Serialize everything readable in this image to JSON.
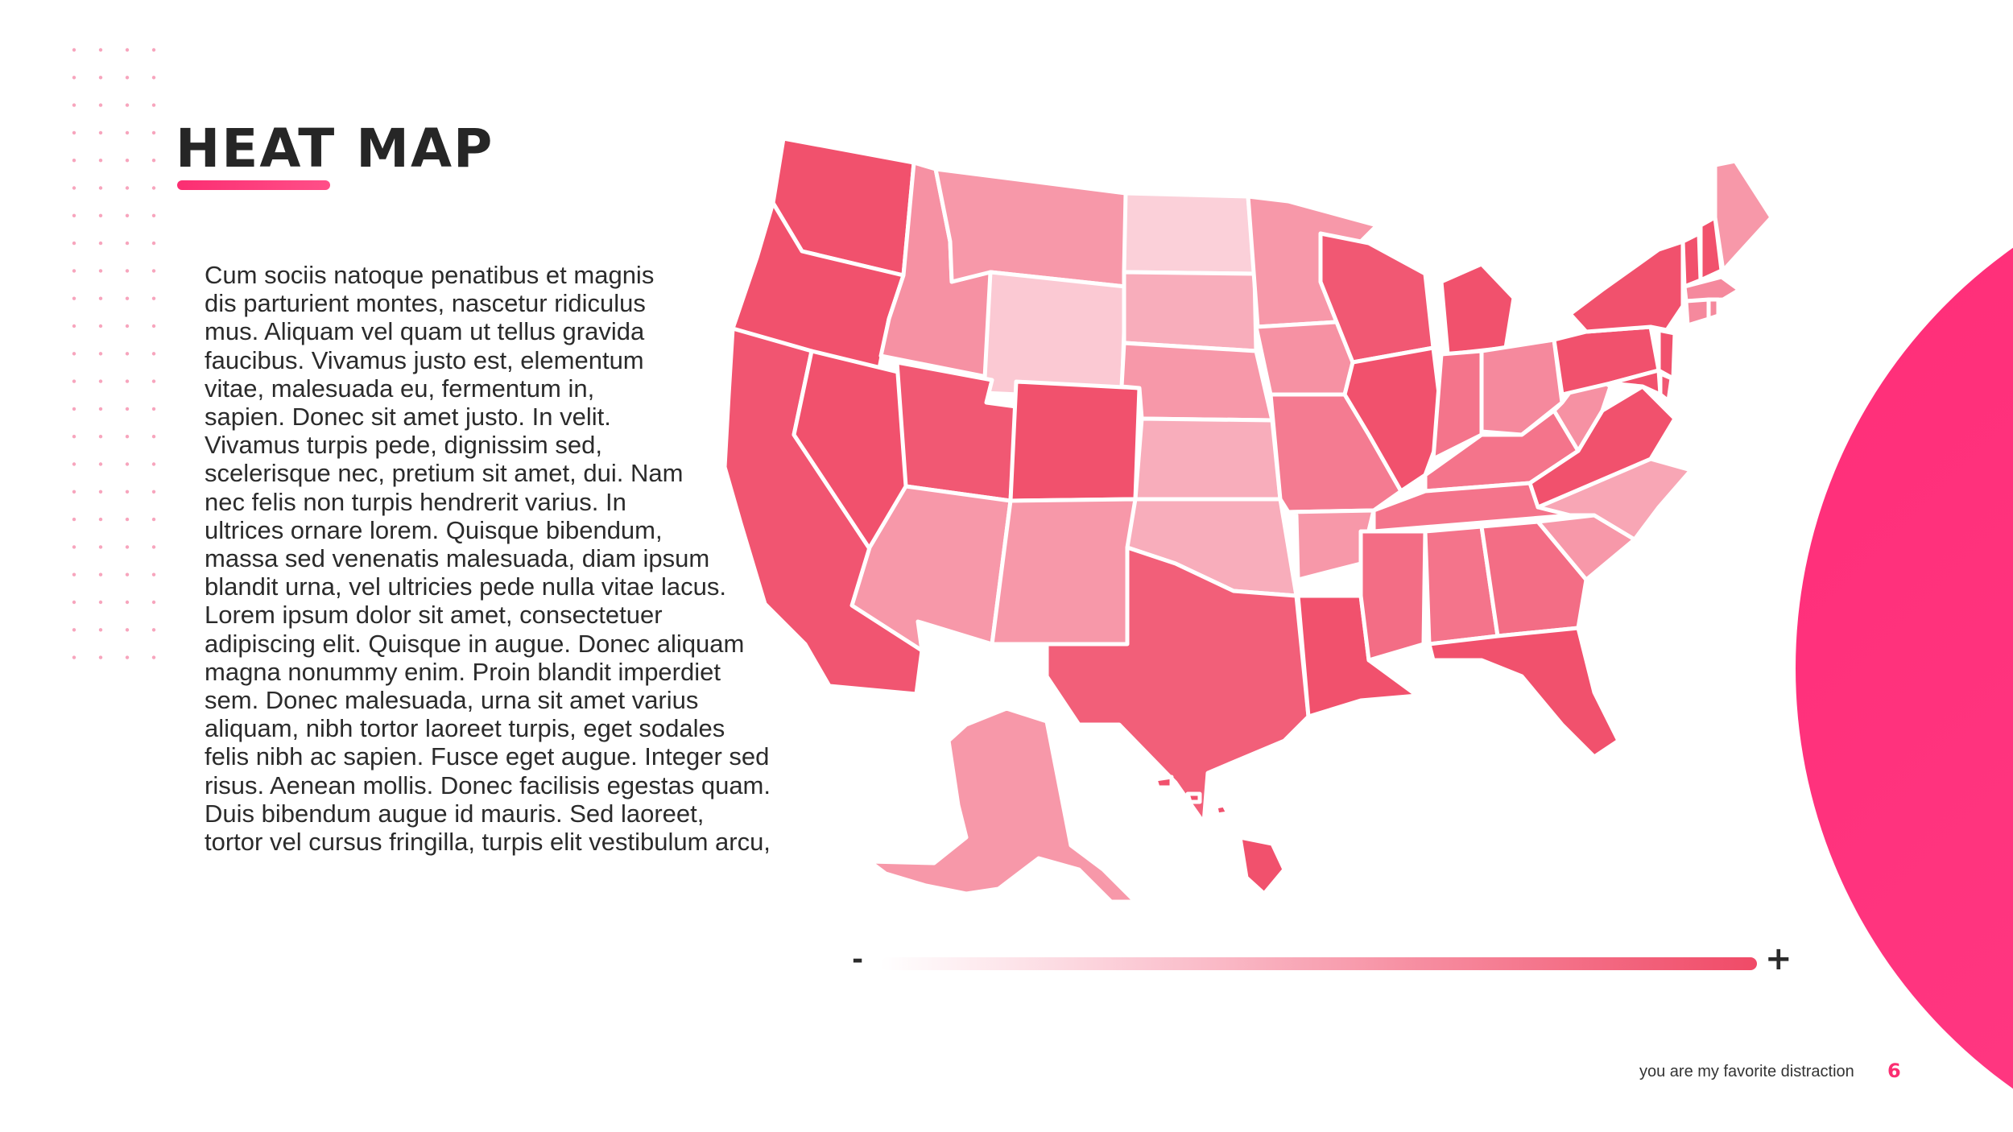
{
  "slide": {
    "title": "HEAT MAP",
    "body": "Cum sociis natoque penatibus et magnis\ndis parturient montes, nascetur ridiculus\nmus. Aliquam vel quam ut tellus gravida\nfaucibus. Vivamus justo est, elementum\nvitae, malesuada eu, fermentum in,\nsapien. Donec sit amet justo. In velit.\nVivamus turpis pede, dignissim sed,\nscelerisque nec, pretium sit amet, dui. Nam\nnec felis non turpis hendrerit varius. In\nultrices ornare lorem. Quisque bibendum,\nmassa sed venenatis malesuada, diam ipsum\nblandit urna, vel ultricies pede nulla vitae lacus.\nLorem ipsum dolor sit amet, consectetuer\nadipiscing elit. Quisque in augue. Donec aliquam\nmagna nonummy enim. Proin blandit imperdiet\nsem. Donec malesuada, urna sit amet varius\naliquam, nibh tortor laoreet turpis, eget sodales\nfelis  nibh ac sapien. Fusce eget augue. Integer sed\nrisus. Aenean mollis. Donec facilisis egestas quam.\nDuis bibendum augue  id mauris. Sed laoreet,\ntortor vel cursus fringilla, turpis elit vestibulum arcu,",
    "footer_text": "you are my favorite distraction",
    "page_number": "6"
  },
  "legend": {
    "low_label": "-",
    "high_label": "+",
    "gradient_colors": [
      "#ffffff",
      "#fbc9d4",
      "#f6879b",
      "#f04a67"
    ]
  },
  "colors": {
    "accent": "#fb2e72",
    "title_text": "#262626",
    "circle_gradient": [
      "#ff2d78",
      "#ff3d87"
    ],
    "dot_color": "#f7a5bd"
  },
  "map_data": {
    "scale": {
      "min_color": "#fcd7df",
      "max_color": "#f04a67"
    },
    "states": [
      {
        "state": "WA",
        "level": 0.95
      },
      {
        "state": "OR",
        "level": 0.95
      },
      {
        "state": "CA",
        "level": 0.92
      },
      {
        "state": "NV",
        "level": 0.95
      },
      {
        "state": "ID",
        "level": 0.5
      },
      {
        "state": "MT",
        "level": 0.45
      },
      {
        "state": "WY",
        "level": 0.1
      },
      {
        "state": "UT",
        "level": 0.9
      },
      {
        "state": "CO",
        "level": 0.95
      },
      {
        "state": "AZ",
        "level": 0.45
      },
      {
        "state": "NM",
        "level": 0.45
      },
      {
        "state": "ND",
        "level": 0.05
      },
      {
        "state": "SD",
        "level": 0.3
      },
      {
        "state": "NE",
        "level": 0.45
      },
      {
        "state": "KS",
        "level": 0.3
      },
      {
        "state": "OK",
        "level": 0.3
      },
      {
        "state": "TX",
        "level": 0.85
      },
      {
        "state": "MN",
        "level": 0.45
      },
      {
        "state": "IA",
        "level": 0.5
      },
      {
        "state": "MO",
        "level": 0.65
      },
      {
        "state": "AR",
        "level": 0.45
      },
      {
        "state": "LA",
        "level": 0.95
      },
      {
        "state": "WI",
        "level": 0.9
      },
      {
        "state": "IL",
        "level": 0.95
      },
      {
        "state": "MI",
        "level": 0.95
      },
      {
        "state": "IN",
        "level": 0.7
      },
      {
        "state": "OH",
        "level": 0.55
      },
      {
        "state": "KY",
        "level": 0.7
      },
      {
        "state": "TN",
        "level": 0.7
      },
      {
        "state": "MS",
        "level": 0.75
      },
      {
        "state": "AL",
        "level": 0.7
      },
      {
        "state": "GA",
        "level": 0.75
      },
      {
        "state": "FL",
        "level": 0.95
      },
      {
        "state": "SC",
        "level": 0.45
      },
      {
        "state": "NC",
        "level": 0.35
      },
      {
        "state": "VA",
        "level": 0.95
      },
      {
        "state": "WV",
        "level": 0.5
      },
      {
        "state": "PA",
        "level": 0.95
      },
      {
        "state": "NY",
        "level": 0.95
      },
      {
        "state": "VT",
        "level": 0.95
      },
      {
        "state": "NH",
        "level": 0.95
      },
      {
        "state": "ME",
        "level": 0.45
      },
      {
        "state": "MA",
        "level": 0.55
      },
      {
        "state": "CT",
        "level": 0.55
      },
      {
        "state": "RI",
        "level": 0.55
      },
      {
        "state": "NJ",
        "level": 0.95
      },
      {
        "state": "DE",
        "level": 0.9
      },
      {
        "state": "MD",
        "level": 0.95
      },
      {
        "state": "AK",
        "level": 0.45
      },
      {
        "state": "HI",
        "level": 0.95
      }
    ]
  }
}
